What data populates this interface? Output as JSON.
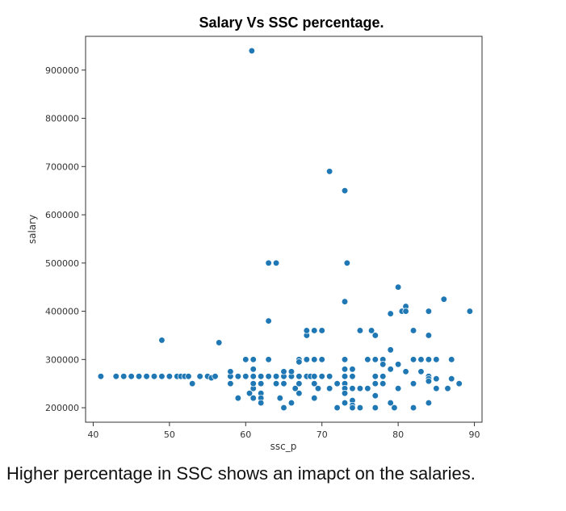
{
  "chart_data": {
    "type": "scatter",
    "title": "Salary Vs SSC percentage.",
    "xlabel": "ssc_p",
    "ylabel": "salary",
    "xlim": [
      39,
      91
    ],
    "ylim": [
      170000,
      970000
    ],
    "xticks": [
      40,
      50,
      60,
      70,
      80,
      90
    ],
    "yticks": [
      200000,
      300000,
      400000,
      500000,
      600000,
      700000,
      800000,
      900000
    ],
    "marker_color": "#1f77b4",
    "grid": false,
    "points": [
      [
        41,
        265000
      ],
      [
        43,
        265000
      ],
      [
        44,
        265000
      ],
      [
        45,
        265000
      ],
      [
        46,
        265000
      ],
      [
        47,
        265000
      ],
      [
        48,
        265000
      ],
      [
        49,
        265000
      ],
      [
        50,
        265000
      ],
      [
        51,
        265000
      ],
      [
        51.5,
        265000
      ],
      [
        52,
        265000
      ],
      [
        52.5,
        265000
      ],
      [
        53,
        250000
      ],
      [
        54,
        265000
      ],
      [
        55,
        265000
      ],
      [
        55.5,
        262000
      ],
      [
        56,
        265000
      ],
      [
        49,
        340000
      ],
      [
        56.5,
        335000
      ],
      [
        58,
        265000
      ],
      [
        58,
        275000
      ],
      [
        58,
        250000
      ],
      [
        59,
        265000
      ],
      [
        59,
        220000
      ],
      [
        60,
        265000
      ],
      [
        60,
        300000
      ],
      [
        60.5,
        230000
      ],
      [
        61,
        240000
      ],
      [
        61,
        220000
      ],
      [
        61,
        265000
      ],
      [
        61,
        280000
      ],
      [
        61,
        300000
      ],
      [
        61,
        250000
      ],
      [
        62,
        265000
      ],
      [
        62,
        250000
      ],
      [
        62,
        230000
      ],
      [
        62,
        220000
      ],
      [
        62,
        210000
      ],
      [
        63,
        300000
      ],
      [
        63,
        265000
      ],
      [
        63,
        500000
      ],
      [
        63,
        380000
      ],
      [
        64,
        500000
      ],
      [
        64,
        265000
      ],
      [
        64,
        250000
      ],
      [
        64.5,
        220000
      ],
      [
        65,
        265000
      ],
      [
        65,
        275000
      ],
      [
        65,
        250000
      ],
      [
        65,
        200000
      ],
      [
        66,
        265000
      ],
      [
        66,
        275000
      ],
      [
        66,
        210000
      ],
      [
        66.5,
        240000
      ],
      [
        67,
        300000
      ],
      [
        67,
        265000
      ],
      [
        67,
        295000
      ],
      [
        67,
        230000
      ],
      [
        67,
        250000
      ],
      [
        68,
        265000
      ],
      [
        68,
        300000
      ],
      [
        68,
        350000
      ],
      [
        68,
        360000
      ],
      [
        68.5,
        265000
      ],
      [
        69,
        300000
      ],
      [
        69,
        360000
      ],
      [
        69,
        265000
      ],
      [
        69,
        250000
      ],
      [
        69,
        220000
      ],
      [
        69.5,
        240000
      ],
      [
        70,
        360000
      ],
      [
        70,
        300000
      ],
      [
        70,
        265000
      ],
      [
        71,
        690000
      ],
      [
        71,
        240000
      ],
      [
        71,
        265000
      ],
      [
        72,
        250000
      ],
      [
        72,
        200000
      ],
      [
        73,
        650000
      ],
      [
        73,
        420000
      ],
      [
        73,
        300000
      ],
      [
        73,
        280000
      ],
      [
        73,
        265000
      ],
      [
        73,
        250000
      ],
      [
        73,
        240000
      ],
      [
        73,
        230000
      ],
      [
        73,
        210000
      ],
      [
        73.3,
        500000
      ],
      [
        74,
        265000
      ],
      [
        74,
        280000
      ],
      [
        74,
        240000
      ],
      [
        74,
        215000
      ],
      [
        74,
        205000
      ],
      [
        74,
        200000
      ],
      [
        75,
        360000
      ],
      [
        75,
        240000
      ],
      [
        75,
        200000
      ],
      [
        76,
        300000
      ],
      [
        76,
        240000
      ],
      [
        76.5,
        360000
      ],
      [
        77,
        350000
      ],
      [
        77,
        300000
      ],
      [
        77,
        265000
      ],
      [
        77,
        250000
      ],
      [
        77,
        225000
      ],
      [
        77,
        200000
      ],
      [
        78,
        300000
      ],
      [
        78,
        290000
      ],
      [
        78,
        265000
      ],
      [
        78,
        250000
      ],
      [
        79,
        320000
      ],
      [
        79,
        280000
      ],
      [
        79,
        395000
      ],
      [
        79,
        210000
      ],
      [
        79.5,
        200000
      ],
      [
        80,
        450000
      ],
      [
        80,
        290000
      ],
      [
        80,
        240000
      ],
      [
        80.5,
        400000
      ],
      [
        81,
        410000
      ],
      [
        81,
        400000
      ],
      [
        81,
        275000
      ],
      [
        82,
        360000
      ],
      [
        82,
        300000
      ],
      [
        82,
        250000
      ],
      [
        82,
        200000
      ],
      [
        83,
        300000
      ],
      [
        83,
        275000
      ],
      [
        84,
        400000
      ],
      [
        84,
        350000
      ],
      [
        84,
        300000
      ],
      [
        84,
        265000
      ],
      [
        84,
        260000
      ],
      [
        84,
        255000
      ],
      [
        84,
        210000
      ],
      [
        85,
        300000
      ],
      [
        85,
        260000
      ],
      [
        85,
        240000
      ],
      [
        86,
        425000
      ],
      [
        86.5,
        240000
      ],
      [
        87,
        300000
      ],
      [
        87,
        260000
      ],
      [
        88,
        250000
      ],
      [
        89.4,
        400000
      ],
      [
        60.8,
        940000
      ]
    ]
  },
  "caption": "Higher percentage in SSC shows an imapct on the salaries."
}
